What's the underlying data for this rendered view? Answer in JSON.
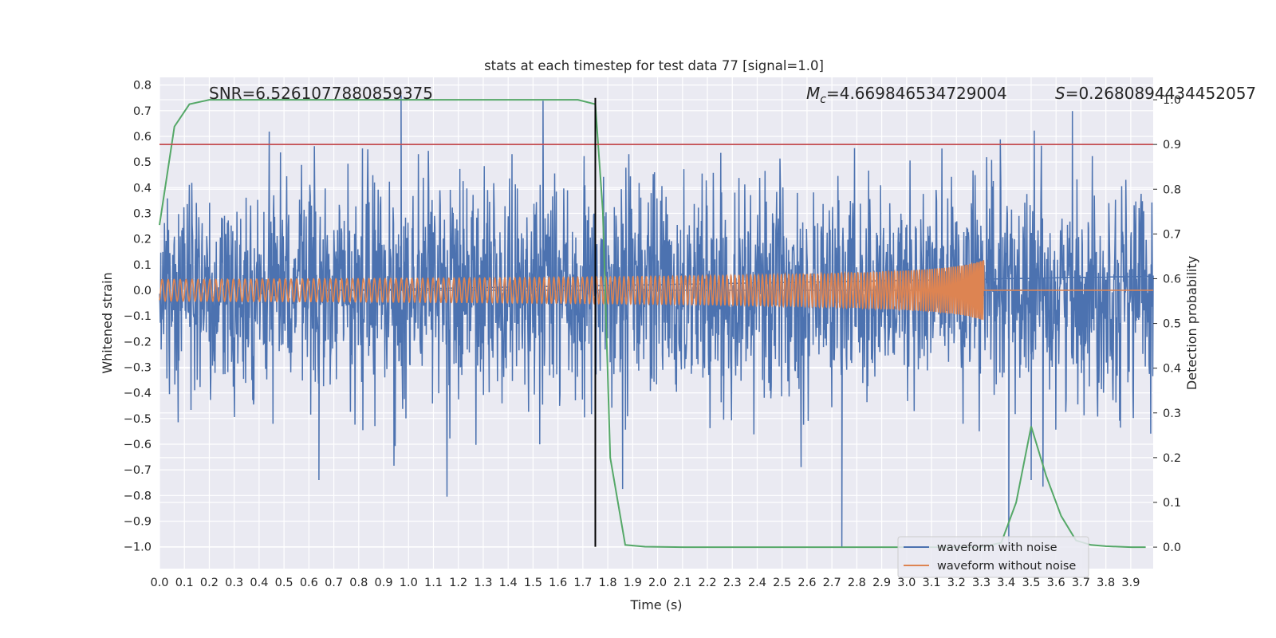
{
  "chart_data": {
    "type": "line",
    "title": "stats at each timestep for test data 77 [signal=1.0]",
    "xlabel": "Time (s)",
    "ylabel_left": "Whitened strain",
    "ylabel_right": "Detection probability",
    "xlim": [
      0.0,
      3.99
    ],
    "ylim_left": [
      -1.085,
      0.83
    ],
    "ylim_right": [
      -0.048,
      1.05
    ],
    "x_ticks": [
      "0.0",
      "0.1",
      "0.2",
      "0.3",
      "0.4",
      "0.5",
      "0.6",
      "0.7",
      "0.8",
      "0.9",
      "1.0",
      "1.1",
      "1.2",
      "1.3",
      "1.4",
      "1.5",
      "1.6",
      "1.7",
      "1.8",
      "1.9",
      "2.0",
      "2.1",
      "2.2",
      "2.3",
      "2.4",
      "2.5",
      "2.6",
      "2.7",
      "2.8",
      "2.9",
      "3.0",
      "3.1",
      "3.2",
      "3.3",
      "3.4",
      "3.5",
      "3.6",
      "3.7",
      "3.8",
      "3.9"
    ],
    "y_ticks_left": [
      "0.8",
      "0.7",
      "0.6",
      "0.5",
      "0.4",
      "0.3",
      "0.2",
      "0.1",
      "0.0",
      "−0.1",
      "−0.2",
      "−0.3",
      "−0.4",
      "−0.5",
      "−0.6",
      "−0.7",
      "−0.8",
      "−0.9",
      "−1.0"
    ],
    "y_ticks_right": [
      "1.0",
      "0.9",
      "0.8",
      "0.7",
      "0.6",
      "0.5",
      "0.4",
      "0.3",
      "0.2",
      "0.1",
      "0.0"
    ],
    "grid": true,
    "legend_position": "lower-right",
    "annotations": {
      "snr": "SNR=6.5261077880859375",
      "mc_symbol": "M",
      "mc_sub": "c",
      "mc_value": "=4.669846534729004",
      "s_symbol": "S",
      "s_value": "=0.2680894434452057"
    },
    "colors": {
      "background": "#eaeaf2",
      "grid": "#ffffff",
      "noisy": "#4c72b0",
      "clean": "#dd8452",
      "prob": "#55a868",
      "threshold": "#c44e52",
      "marker": "#000000"
    },
    "series": [
      {
        "name": "waveform with noise",
        "axis": "left",
        "color": "#4c72b0",
        "description_stats": {
          "typical_amplitude": 0.22,
          "max": 0.76,
          "min": -1.0
        },
        "notable_points": [
          {
            "x": 0.64,
            "y": -0.74
          },
          {
            "x": 0.97,
            "y": 0.76
          },
          {
            "x": 2.74,
            "y": -1.0
          },
          {
            "x": 3.41,
            "y": -1.0
          },
          {
            "x": 3.5,
            "y": -0.74
          }
        ]
      },
      {
        "name": "waveform without noise",
        "axis": "left",
        "color": "#dd8452",
        "chirp": {
          "start_amplitude": 0.025,
          "end_amplitude": 0.12,
          "start_time": 0.0,
          "merger_time": 3.31
        }
      },
      {
        "axis": "right",
        "color": "#55a868",
        "x": [
          0.0,
          0.06,
          0.12,
          0.2,
          0.3,
          0.5,
          0.8,
          1.0,
          1.3,
          1.6,
          1.68,
          1.75,
          1.78,
          1.81,
          1.87,
          1.95,
          2.1,
          2.5,
          3.0,
          3.3,
          3.38,
          3.44,
          3.5,
          3.56,
          3.62,
          3.68,
          3.74,
          3.8,
          3.9,
          3.96
        ],
        "y": [
          0.72,
          0.94,
          0.99,
          1.0,
          1.0,
          1.0,
          1.0,
          1.0,
          1.0,
          1.0,
          1.0,
          0.99,
          0.75,
          0.2,
          0.005,
          0.001,
          0.0,
          0.0,
          0.0,
          0.0,
          0.01,
          0.1,
          0.27,
          0.16,
          0.07,
          0.015,
          0.005,
          0.002,
          0.0,
          0.0
        ]
      },
      {
        "axis": "right",
        "color": "#c44e52",
        "type": "hline",
        "y": 0.9
      },
      {
        "axis": "left",
        "color": "#000000",
        "type": "vline",
        "x": 1.75,
        "y_range": [
          -1.0,
          0.75
        ]
      }
    ],
    "legend": [
      "waveform with noise",
      "waveform without noise"
    ]
  }
}
